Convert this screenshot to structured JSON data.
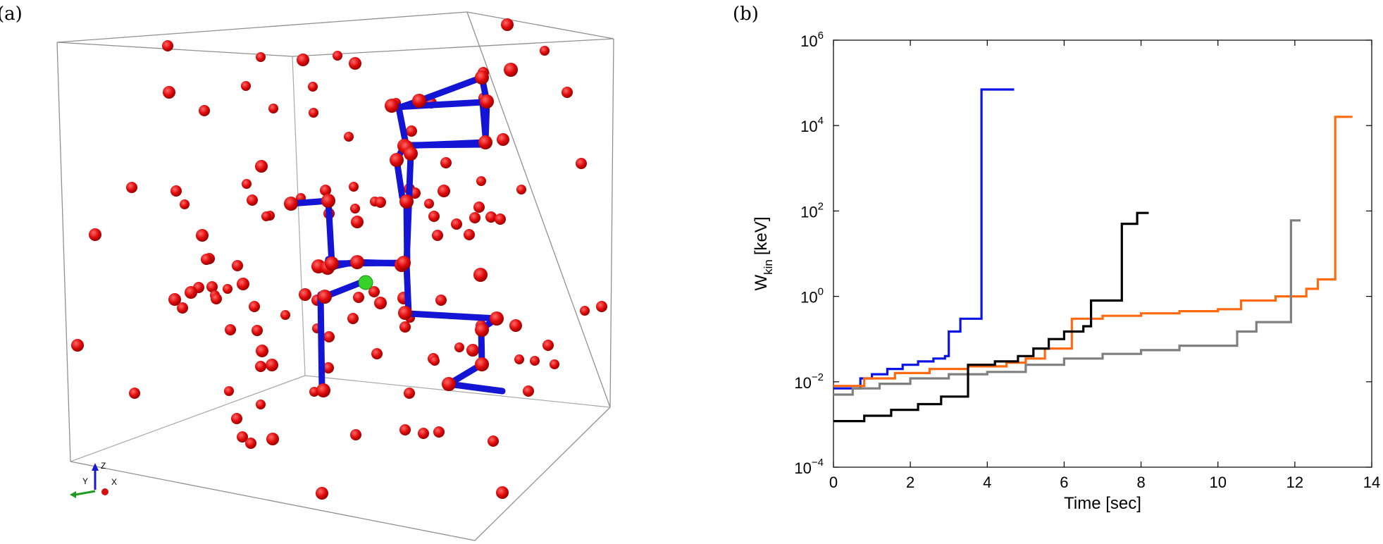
{
  "panel_a": {
    "label": "(a)",
    "axis_triad": {
      "z": "Z",
      "y": "Y",
      "x": "X"
    }
  },
  "panel_b": {
    "label": "(b)"
  },
  "chart_data": {
    "type": "line",
    "title": "",
    "xlabel": "Time [sec]",
    "ylabel_main": "W",
    "ylabel_sub": "kin",
    "ylabel_unit": "[keV]",
    "xlim": [
      0,
      14
    ],
    "ylim_log10": [
      -4,
      6
    ],
    "yscale": "log",
    "x_ticks": [
      "0",
      "2",
      "4",
      "6",
      "8",
      "10",
      "12",
      "14"
    ],
    "y_ticks": [
      {
        "exp": -4,
        "base": "10",
        "sup": "−4"
      },
      {
        "exp": -2,
        "base": "10",
        "sup": "−2"
      },
      {
        "exp": 0,
        "base": "10",
        "sup": "0"
      },
      {
        "exp": 2,
        "base": "10",
        "sup": "2"
      },
      {
        "exp": 4,
        "base": "10",
        "sup": "4"
      },
      {
        "exp": 6,
        "base": "10",
        "sup": "6"
      }
    ],
    "series": [
      {
        "name": "blue",
        "color": "#0a14e6",
        "x": [
          0,
          0.7,
          0.7,
          1.0,
          1.0,
          1.4,
          1.4,
          1.8,
          1.8,
          2.2,
          2.2,
          2.6,
          2.6,
          2.9,
          2.9,
          3.0,
          3.0,
          3.3,
          3.3,
          3.85,
          3.85,
          4.7
        ],
        "y": [
          0.007,
          0.007,
          0.012,
          0.012,
          0.015,
          0.015,
          0.02,
          0.02,
          0.025,
          0.025,
          0.03,
          0.03,
          0.035,
          0.035,
          0.04,
          0.04,
          0.15,
          0.15,
          0.3,
          0.3,
          70000,
          70000
        ]
      },
      {
        "name": "orange",
        "color": "#ff6a10",
        "x": [
          0,
          0.8,
          0.8,
          1.6,
          1.6,
          2.5,
          2.5,
          3.5,
          3.5,
          4.5,
          4.5,
          5.0,
          5.0,
          5.5,
          5.5,
          6.2,
          6.2,
          7.0,
          7.0,
          8.0,
          8.0,
          9.0,
          9.0,
          10.0,
          10.0,
          10.6,
          10.6,
          11.5,
          11.5,
          12.3,
          12.3,
          12.6,
          12.6,
          13.05,
          13.05,
          13.5
        ],
        "y": [
          0.008,
          0.008,
          0.012,
          0.012,
          0.016,
          0.016,
          0.02,
          0.02,
          0.023,
          0.023,
          0.028,
          0.028,
          0.035,
          0.035,
          0.06,
          0.06,
          0.3,
          0.3,
          0.35,
          0.35,
          0.4,
          0.4,
          0.45,
          0.45,
          0.5,
          0.5,
          0.8,
          0.8,
          1.0,
          1.0,
          1.5,
          1.5,
          2.5,
          2.5,
          16000,
          16000
        ]
      },
      {
        "name": "gray",
        "color": "#7f7f7f",
        "x": [
          0,
          0.5,
          0.5,
          1.2,
          1.2,
          2.0,
          2.0,
          3.0,
          3.0,
          4.0,
          4.0,
          5.0,
          5.0,
          6.0,
          6.0,
          7.0,
          7.0,
          8.0,
          8.0,
          9.0,
          9.0,
          10.5,
          10.5,
          11.0,
          11.0,
          11.9,
          11.9,
          12.15
        ],
        "y": [
          0.005,
          0.005,
          0.007,
          0.007,
          0.009,
          0.009,
          0.012,
          0.012,
          0.015,
          0.015,
          0.017,
          0.017,
          0.025,
          0.025,
          0.035,
          0.035,
          0.045,
          0.045,
          0.055,
          0.055,
          0.07,
          0.07,
          0.15,
          0.15,
          0.25,
          0.25,
          60,
          60
        ]
      },
      {
        "name": "black",
        "color": "#000000",
        "x": [
          0,
          0.8,
          0.8,
          1.5,
          1.5,
          2.2,
          2.2,
          2.8,
          2.8,
          3.5,
          3.5,
          4.2,
          4.2,
          4.8,
          4.8,
          5.2,
          5.2,
          5.6,
          5.6,
          6.0,
          6.0,
          6.5,
          6.5,
          6.7,
          6.7,
          7.5,
          7.5,
          7.9,
          7.9,
          8.2
        ],
        "y": [
          0.0012,
          0.0012,
          0.0016,
          0.0016,
          0.0022,
          0.0022,
          0.003,
          0.003,
          0.0045,
          0.0045,
          0.025,
          0.025,
          0.03,
          0.03,
          0.04,
          0.04,
          0.06,
          0.06,
          0.1,
          0.1,
          0.15,
          0.15,
          0.2,
          0.2,
          0.8,
          0.8,
          50,
          50,
          90,
          90
        ]
      }
    ]
  }
}
